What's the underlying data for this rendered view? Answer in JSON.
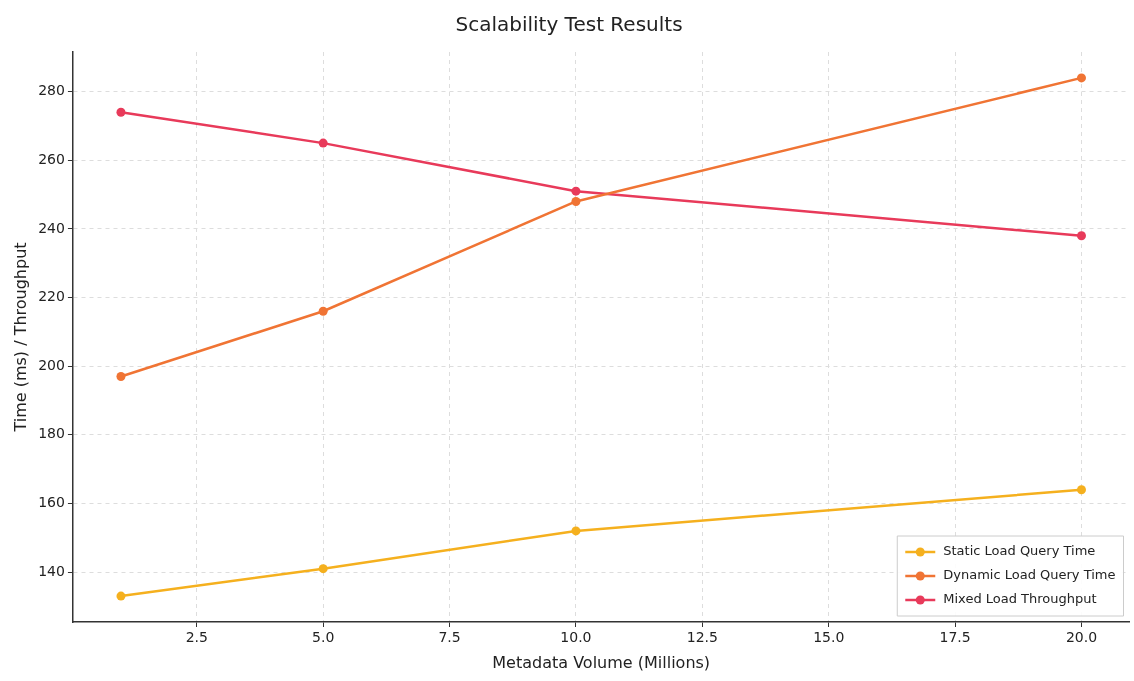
{
  "chart_data": {
    "type": "line",
    "title": "Scalability Test Results",
    "xlabel": "Metadata Volume (Millions)",
    "ylabel": "Time (ms) / Throughput",
    "x": [
      1,
      5,
      10,
      20
    ],
    "series": [
      {
        "name": "Static Load Query Time",
        "color": "#f5b01e",
        "values": [
          133,
          141,
          152,
          164
        ]
      },
      {
        "name": "Dynamic Load Query Time",
        "color": "#f07434",
        "values": [
          197,
          216,
          248,
          284
        ]
      },
      {
        "name": "Mixed Load Throughput",
        "color": "#e83a5a",
        "values": [
          274,
          265,
          251,
          238
        ]
      }
    ],
    "xlim": [
      0.05,
      20.95
    ],
    "ylim": [
      125.45,
      291.55
    ],
    "xticks": [
      {
        "value": 2.5,
        "label": "2.5"
      },
      {
        "value": 5,
        "label": "5.0"
      },
      {
        "value": 7.5,
        "label": "7.5"
      },
      {
        "value": 10,
        "label": "10.0"
      },
      {
        "value": 12.5,
        "label": "12.5"
      },
      {
        "value": 15,
        "label": "15.0"
      },
      {
        "value": 17.5,
        "label": "17.5"
      },
      {
        "value": 20,
        "label": "20.0"
      }
    ],
    "yticks": [
      140,
      160,
      180,
      200,
      220,
      240,
      260,
      280
    ],
    "grid": true,
    "legend": "bottom right",
    "marker": "circle",
    "line_style": "solid"
  }
}
